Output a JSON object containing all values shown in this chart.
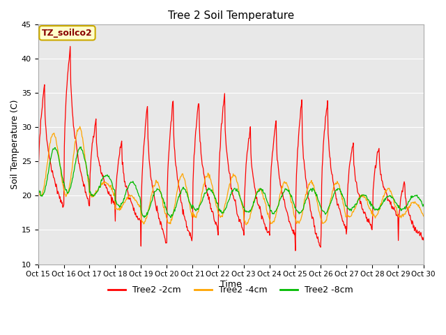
{
  "title": "Tree 2 Soil Temperature",
  "xlabel": "Time",
  "ylabel": "Soil Temperature (C)",
  "ylim": [
    10,
    45
  ],
  "yticks": [
    10,
    15,
    20,
    25,
    30,
    35,
    40,
    45
  ],
  "annotation_text": "TZ_soilco2",
  "legend_labels": [
    "Tree2 -2cm",
    "Tree2 -4cm",
    "Tree2 -8cm"
  ],
  "line_colors": [
    "#ff0000",
    "#ffa500",
    "#00bb00"
  ],
  "bg_color": "#e8e8e8",
  "x_tick_labels": [
    "Oct 15",
    "Oct 16",
    "Oct 17",
    "Oct 18",
    "Oct 19",
    "Oct 20",
    "Oct 21",
    "Oct 22",
    "Oct 23",
    "Oct 24",
    "Oct 25",
    "Oct 26",
    "Oct 27",
    "Oct 28",
    "Oct 29",
    "Oct 30"
  ],
  "peaks_2cm": [
    36,
    42,
    31,
    28,
    33,
    34,
    34,
    35,
    30,
    31,
    34,
    34,
    28,
    27,
    22
  ],
  "troughs_2cm": [
    18,
    18.5,
    18.5,
    16,
    13,
    13,
    15,
    14.5,
    14,
    14,
    12,
    14.5,
    15,
    17,
    13.5
  ],
  "peaks_4cm": [
    29,
    30,
    22,
    20,
    22,
    23,
    23,
    23,
    21,
    22,
    22,
    22,
    20,
    21,
    19
  ],
  "troughs_4cm": [
    20,
    20,
    20,
    18,
    16,
    16,
    17,
    17,
    16,
    16,
    16,
    16,
    17,
    17,
    17
  ],
  "peaks_8cm": [
    27,
    27,
    23,
    22,
    21,
    21,
    21,
    21,
    21,
    21,
    21,
    21,
    20,
    20,
    20
  ],
  "troughs_8cm": [
    20,
    20.5,
    20,
    18.5,
    17,
    17,
    18,
    17.5,
    17.5,
    17.5,
    17.5,
    17.5,
    18,
    18,
    18
  ],
  "n_points_per_day": 48
}
